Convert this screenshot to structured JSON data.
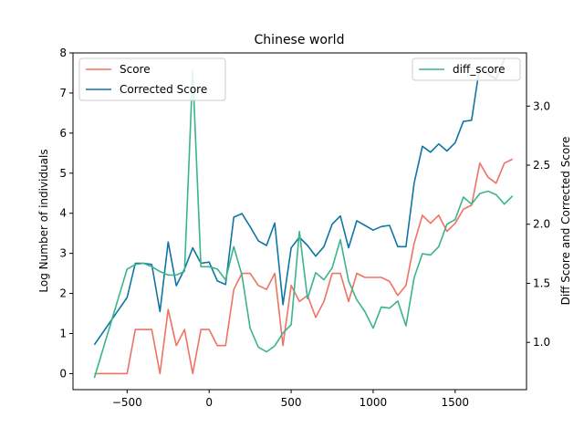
{
  "chart_data": {
    "type": "line",
    "title": "Chinese world",
    "xlabel": "",
    "ylabel": "Log Number of individuals",
    "ylabel_right": "Diff Score and Corrected Score",
    "xlim": [
      -830,
      1935
    ],
    "ylim": [
      -0.4,
      8.0
    ],
    "ylim_right": [
      0.6,
      3.45
    ],
    "x_ticks": [
      -500,
      0,
      500,
      1000,
      1500
    ],
    "x_tick_labels": [
      "−500",
      "0",
      "500",
      "1000",
      "1500"
    ],
    "y_ticks": [
      0,
      1,
      2,
      3,
      4,
      5,
      6,
      7,
      8
    ],
    "y_ticks_right": [
      1.0,
      1.5,
      2.0,
      2.5,
      3.0
    ],
    "y_tick_labels_right": [
      "1.0",
      "1.5",
      "2.0",
      "2.5",
      "3.0"
    ],
    "grid": false,
    "legend_left": {
      "placement": "top-left",
      "entries": [
        "Score",
        "Corrected Score"
      ]
    },
    "legend_right": {
      "placement": "top-right",
      "entries": [
        "diff_score"
      ]
    },
    "series": [
      {
        "name": "Score",
        "axis": "left",
        "color": "#f07264",
        "x": [
          -700,
          -500,
          -450,
          -400,
          -350,
          -300,
          -250,
          -200,
          -150,
          -100,
          -50,
          0,
          50,
          100,
          150,
          200,
          250,
          300,
          350,
          400,
          450,
          500,
          550,
          600,
          650,
          700,
          750,
          800,
          850,
          900,
          950,
          1000,
          1050,
          1100,
          1150,
          1200,
          1250,
          1300,
          1350,
          1400,
          1450,
          1500,
          1550,
          1600,
          1650,
          1700,
          1750,
          1800,
          1850
        ],
        "y": [
          0.0,
          0.0,
          1.1,
          1.1,
          1.1,
          0.0,
          1.6,
          0.7,
          1.1,
          0.0,
          1.1,
          1.1,
          0.7,
          0.7,
          2.1,
          2.5,
          2.5,
          2.2,
          2.1,
          2.5,
          0.7,
          2.2,
          1.8,
          1.95,
          1.4,
          1.8,
          2.5,
          2.5,
          1.8,
          2.5,
          2.4,
          2.4,
          2.4,
          2.3,
          1.95,
          2.2,
          3.25,
          3.95,
          3.75,
          3.95,
          3.55,
          3.75,
          4.1,
          4.2,
          5.25,
          4.9,
          4.75,
          5.25,
          5.35
        ]
      },
      {
        "name": "Corrected Score",
        "axis": "right",
        "color": "#0f75a4",
        "x": [
          -700,
          -500,
          -450,
          -400,
          -350,
          -300,
          -250,
          -200,
          -150,
          -100,
          -50,
          0,
          50,
          100,
          150,
          200,
          250,
          300,
          350,
          400,
          450,
          500,
          550,
          600,
          650,
          700,
          750,
          800,
          850,
          900,
          950,
          1000,
          1050,
          1100,
          1150,
          1200,
          1250,
          1300,
          1350,
          1400,
          1450,
          1500,
          1550,
          1600,
          1650,
          1700,
          1750,
          1800
        ],
        "y": [
          0.98,
          1.38,
          1.67,
          1.67,
          1.66,
          1.26,
          1.85,
          1.48,
          1.62,
          1.8,
          1.67,
          1.68,
          1.52,
          1.49,
          2.06,
          2.09,
          1.98,
          1.86,
          1.82,
          2.01,
          1.32,
          1.8,
          1.89,
          1.82,
          1.73,
          1.81,
          2.0,
          2.07,
          1.8,
          2.03,
          1.99,
          1.95,
          1.98,
          1.99,
          1.81,
          1.81,
          2.35,
          2.66,
          2.61,
          2.68,
          2.62,
          2.69,
          2.87,
          2.88,
          3.34,
          3.27,
          3.23,
          3.4
        ]
      },
      {
        "name": "diff_score",
        "axis": "right",
        "color": "#3bb48c",
        "x": [
          -700,
          -500,
          -450,
          -400,
          -350,
          -300,
          -250,
          -200,
          -150,
          -100,
          -50,
          0,
          50,
          100,
          150,
          200,
          250,
          300,
          350,
          400,
          450,
          500,
          550,
          600,
          650,
          700,
          750,
          800,
          850,
          900,
          950,
          1000,
          1050,
          1100,
          1150,
          1200,
          1250,
          1300,
          1350,
          1400,
          1450,
          1500,
          1550,
          1600,
          1650,
          1700,
          1750,
          1800,
          1850
        ],
        "y": [
          0.7,
          1.62,
          1.66,
          1.67,
          1.64,
          1.6,
          1.57,
          1.57,
          1.6,
          3.3,
          1.64,
          1.64,
          1.62,
          1.53,
          1.81,
          1.57,
          1.12,
          0.96,
          0.92,
          0.97,
          1.08,
          1.15,
          1.94,
          1.37,
          1.59,
          1.53,
          1.63,
          1.87,
          1.52,
          1.36,
          1.26,
          1.12,
          1.3,
          1.29,
          1.35,
          1.14,
          1.55,
          1.75,
          1.74,
          1.81,
          2.0,
          2.04,
          2.23,
          2.17,
          2.26,
          2.28,
          2.25,
          2.17,
          2.24
        ]
      }
    ]
  }
}
